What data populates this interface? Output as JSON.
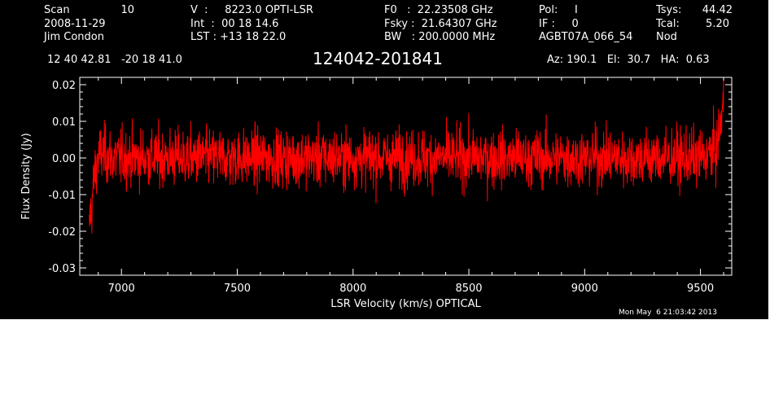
{
  "header": {
    "scan_label": "Scan",
    "scan_number": "10",
    "date": "2008-11-29",
    "observer": "Jim Condon",
    "velocity": "V  :     8223.0 OPTI-LSR",
    "integration": "Int  :  00 18 14.6",
    "lst": "LST : +13 18 22.0",
    "f0": "F0   :  22.23508 GHz",
    "fsky": "Fsky :  21.64307 GHz",
    "bw": "BW   : 200.0000 MHz",
    "pol": "Pol:     I",
    "if": "IF :     0",
    "project": "AGBT07A_066_54",
    "tsys_label": "Tsys:",
    "tsys_value": "44.42",
    "tcal_label": "Tcal:",
    "tcal_value": "5.20",
    "mode": "Nod",
    "coords": "12 40 42.81   -20 18 41.0",
    "source": "124042-201841",
    "az_el_ha": "Az: 190.1   El:  30.7   HA:  0.63",
    "timestamp": "Mon May  6 21:03:42 2013"
  },
  "colors": {
    "background": "#000000",
    "axes": "#ffffff",
    "series": "#ff0000"
  },
  "chart_data": {
    "type": "line",
    "title": "124042-201841",
    "xlabel": "LSR Velocity (km/s) OPTICAL",
    "ylabel": "Flux Density (Jy)",
    "xlim": [
      6820,
      9635
    ],
    "ylim": [
      -0.032,
      0.022
    ],
    "x_ticks": [
      7000,
      7500,
      8000,
      8500,
      9000,
      9500
    ],
    "y_ticks": [
      -0.03,
      -0.02,
      -0.01,
      0.0,
      0.01,
      0.02
    ],
    "y_tick_labels": [
      "-0.03",
      "-0.02",
      "-0.01",
      "0.00",
      "0.01",
      "0.02"
    ],
    "legend": false,
    "grid": false,
    "series": [
      {
        "x": [
          6860,
          6865,
          6870,
          6875,
          6880,
          6885,
          6890,
          6895,
          6900,
          6910,
          6930,
          6960,
          7000,
          7100,
          7200,
          7300,
          7400,
          7500,
          7600,
          7700,
          7800,
          7900,
          8000,
          8100,
          8200,
          8300,
          8400,
          8500,
          8600,
          8700,
          8800,
          8900,
          9000,
          9100,
          9200,
          9300,
          9400,
          9500,
          9540,
          9560,
          9570,
          9580,
          9590,
          9600
        ],
        "values": [
          -0.021,
          -0.014,
          -0.016,
          -0.01,
          -0.007,
          -0.004,
          -0.003,
          -0.001,
          0.0,
          0.001,
          0.001,
          0.0,
          0.0,
          0.0,
          0.0,
          0.0,
          0.0,
          0.0,
          0.0,
          0.0,
          0.0,
          0.0,
          0.0,
          0.0,
          0.0,
          0.0,
          0.0,
          0.0,
          0.0,
          0.0,
          0.0,
          0.0,
          0.0,
          0.0,
          0.0,
          0.0,
          0.0,
          0.0,
          0.001,
          0.002,
          0.003,
          0.006,
          0.011,
          0.016
        ],
        "noise_rms": 0.005
      }
    ]
  }
}
